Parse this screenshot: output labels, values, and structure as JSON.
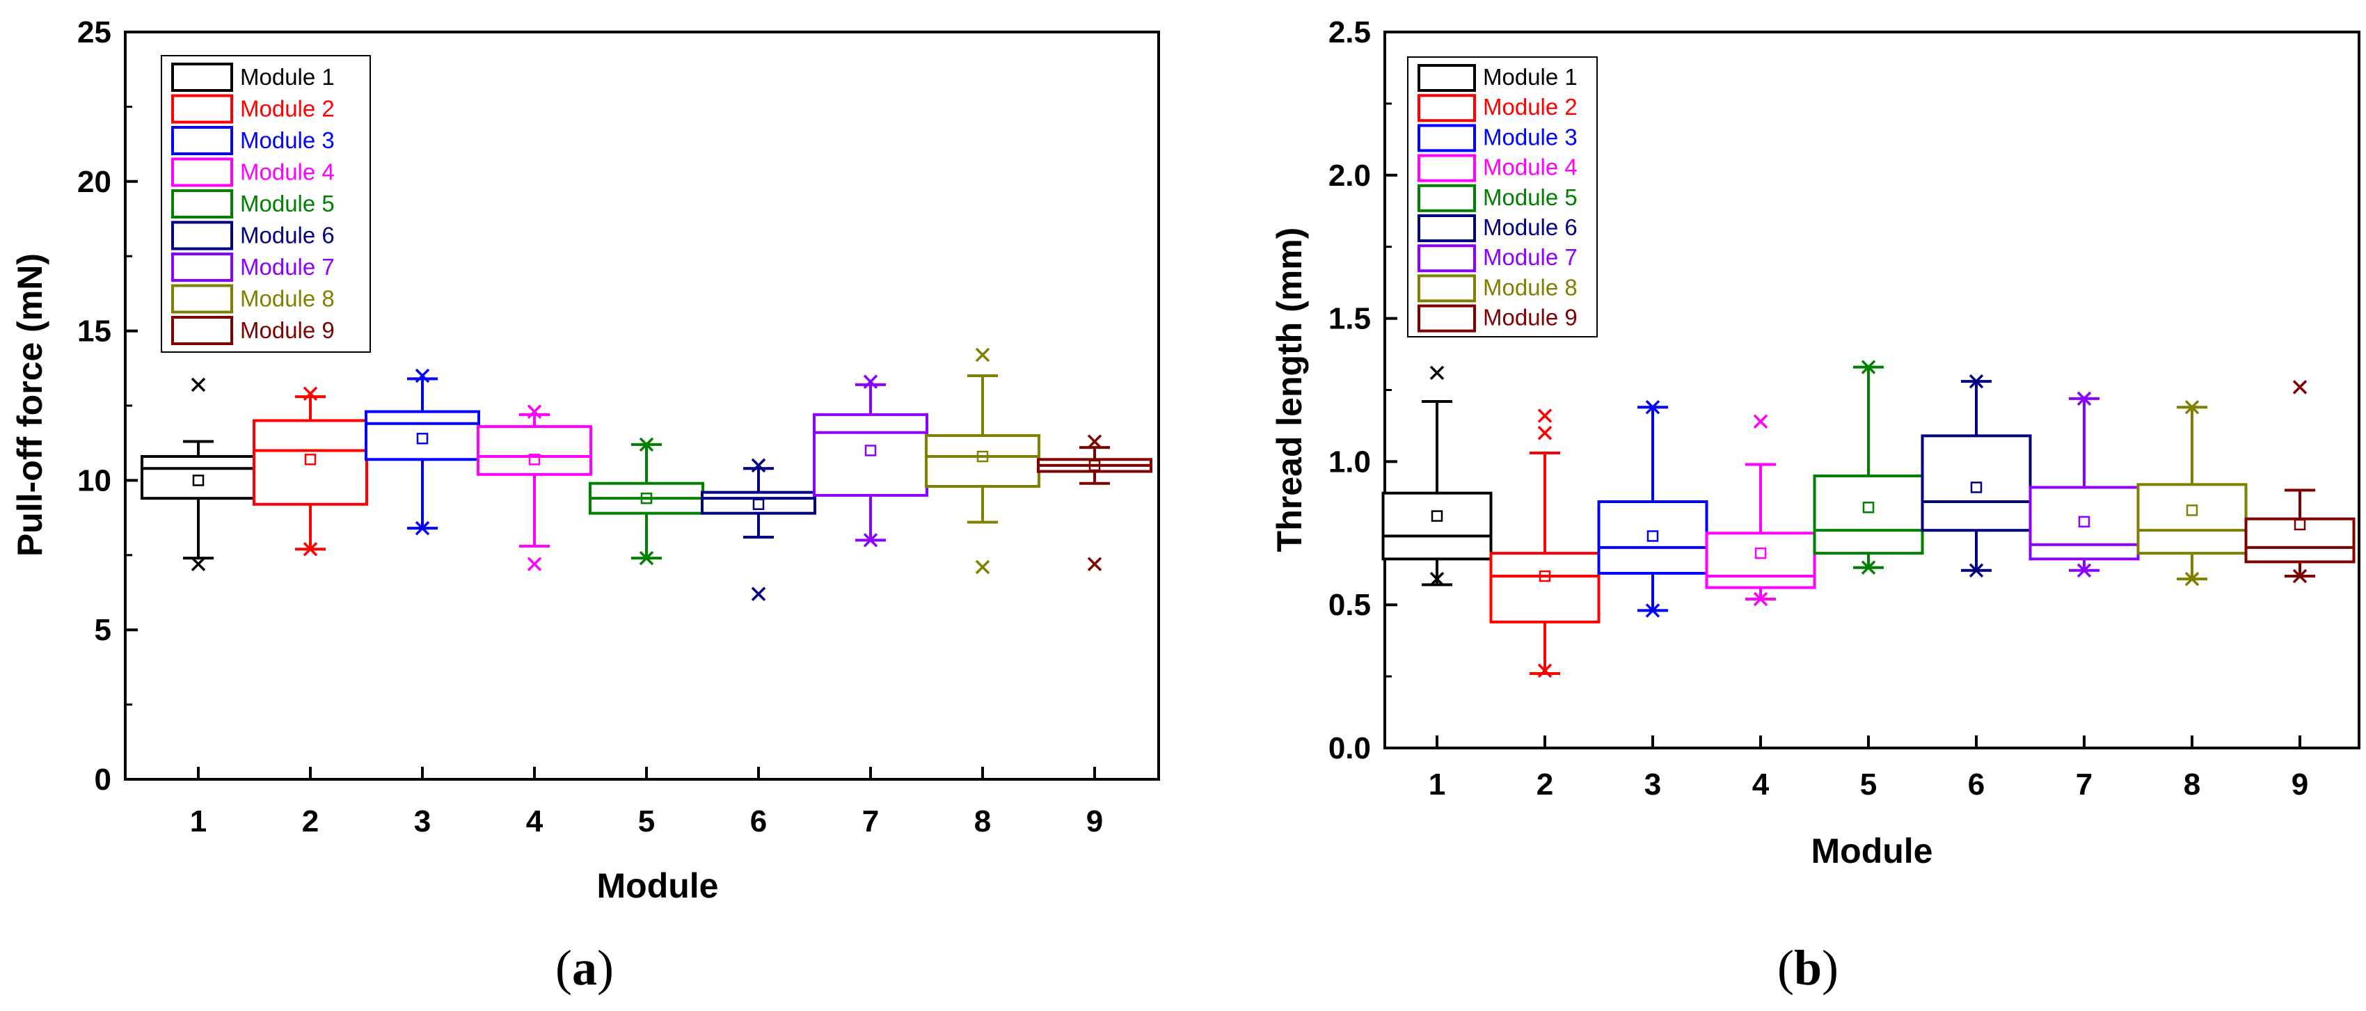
{
  "colors": [
    "#000000",
    "#ff0000",
    "#0000ff",
    "#ff00ff",
    "#008000",
    "#000080",
    "#8b00ff",
    "#808000",
    "#800000"
  ],
  "chart_data": [
    {
      "type": "box",
      "panel_label": {
        "open": "(",
        "letter": "a",
        "close": ")"
      },
      "xlabel": "Module",
      "ylabel": "Pull-off force (mN)",
      "ylim": [
        0,
        25
      ],
      "yticks": [
        0,
        5,
        10,
        15,
        20,
        25
      ],
      "categories": [
        "1",
        "2",
        "3",
        "4",
        "5",
        "6",
        "7",
        "8",
        "9"
      ],
      "legend_placement": "top-left",
      "series": [
        {
          "name": "Module 1",
          "whisker_low": 7.4,
          "q1": 9.4,
          "median": 10.4,
          "q3": 10.8,
          "whisker_high": 11.3,
          "mean": 10.0,
          "outliers": [
            7.2,
            13.2
          ]
        },
        {
          "name": "Module 2",
          "whisker_low": 7.7,
          "q1": 9.2,
          "median": 11.0,
          "q3": 12.0,
          "whisker_high": 12.8,
          "mean": 10.7,
          "outliers": [
            7.7,
            12.9
          ]
        },
        {
          "name": "Module 3",
          "whisker_low": 8.4,
          "q1": 10.7,
          "median": 11.9,
          "q3": 12.3,
          "whisker_high": 13.4,
          "mean": 11.4,
          "outliers": [
            8.4,
            13.5
          ]
        },
        {
          "name": "Module 4",
          "whisker_low": 7.8,
          "q1": 10.2,
          "median": 10.8,
          "q3": 11.8,
          "whisker_high": 12.2,
          "mean": 10.7,
          "outliers": [
            7.2,
            12.3
          ]
        },
        {
          "name": "Module 5",
          "whisker_low": 7.4,
          "q1": 8.9,
          "median": 9.4,
          "q3": 9.9,
          "whisker_high": 11.2,
          "mean": 9.4,
          "outliers": [
            7.4,
            11.2
          ]
        },
        {
          "name": "Module 6",
          "whisker_low": 8.1,
          "q1": 8.9,
          "median": 9.4,
          "q3": 9.6,
          "whisker_high": 10.4,
          "mean": 9.2,
          "outliers": [
            6.2,
            10.5
          ]
        },
        {
          "name": "Module 7",
          "whisker_low": 8.0,
          "q1": 9.5,
          "median": 11.6,
          "q3": 12.2,
          "whisker_high": 13.2,
          "mean": 11.0,
          "outliers": [
            8.0,
            13.3
          ]
        },
        {
          "name": "Module 8",
          "whisker_low": 8.6,
          "q1": 9.8,
          "median": 10.8,
          "q3": 11.5,
          "whisker_high": 13.5,
          "mean": 10.8,
          "outliers": [
            7.1,
            14.2
          ]
        },
        {
          "name": "Module 9",
          "whisker_low": 9.9,
          "q1": 10.3,
          "median": 10.5,
          "q3": 10.7,
          "whisker_high": 11.1,
          "mean": 10.5,
          "outliers": [
            7.2,
            11.3
          ]
        }
      ]
    },
    {
      "type": "box",
      "panel_label": {
        "open": "(",
        "letter": "b",
        "close": ")"
      },
      "xlabel": "Module",
      "ylabel": "Thread length (mm)",
      "ylim": [
        0,
        2.5
      ],
      "yticks": [
        "0.0",
        "0.5",
        "1.0",
        "1.5",
        "2.0",
        "2.5"
      ],
      "categories": [
        "1",
        "2",
        "3",
        "4",
        "5",
        "6",
        "7",
        "8",
        "9"
      ],
      "legend_placement": "top-left",
      "series": [
        {
          "name": "Module 1",
          "whisker_low": 0.57,
          "q1": 0.66,
          "median": 0.74,
          "q3": 0.89,
          "whisker_high": 1.21,
          "mean": 0.81,
          "outliers": [
            0.59,
            1.31
          ]
        },
        {
          "name": "Module 2",
          "whisker_low": 0.26,
          "q1": 0.44,
          "median": 0.6,
          "q3": 0.68,
          "whisker_high": 1.03,
          "mean": 0.6,
          "outliers": [
            0.27,
            1.1,
            1.16
          ]
        },
        {
          "name": "Module 3",
          "whisker_low": 0.48,
          "q1": 0.61,
          "median": 0.7,
          "q3": 0.86,
          "whisker_high": 1.19,
          "mean": 0.74,
          "outliers": [
            0.48,
            1.19
          ]
        },
        {
          "name": "Module 4",
          "whisker_low": 0.52,
          "q1": 0.56,
          "median": 0.6,
          "q3": 0.75,
          "whisker_high": 0.99,
          "mean": 0.68,
          "outliers": [
            0.52,
            1.14
          ]
        },
        {
          "name": "Module 5",
          "whisker_low": 0.63,
          "q1": 0.68,
          "median": 0.76,
          "q3": 0.95,
          "whisker_high": 1.33,
          "mean": 0.84,
          "outliers": [
            0.63,
            1.33
          ]
        },
        {
          "name": "Module 6",
          "whisker_low": 0.62,
          "q1": 0.76,
          "median": 0.86,
          "q3": 1.09,
          "whisker_high": 1.28,
          "mean": 0.91,
          "outliers": [
            0.62,
            1.28
          ]
        },
        {
          "name": "Module 7",
          "whisker_low": 0.62,
          "q1": 0.66,
          "median": 0.71,
          "q3": 0.91,
          "whisker_high": 1.22,
          "mean": 0.79,
          "outliers": [
            0.62,
            1.22
          ]
        },
        {
          "name": "Module 8",
          "whisker_low": 0.59,
          "q1": 0.68,
          "median": 0.76,
          "q3": 0.92,
          "whisker_high": 1.19,
          "mean": 0.83,
          "outliers": [
            0.59,
            1.19
          ]
        },
        {
          "name": "Module 9",
          "whisker_low": 0.6,
          "q1": 0.65,
          "median": 0.7,
          "q3": 0.8,
          "whisker_high": 0.9,
          "mean": 0.78,
          "outliers": [
            0.6,
            1.26
          ]
        }
      ]
    }
  ]
}
